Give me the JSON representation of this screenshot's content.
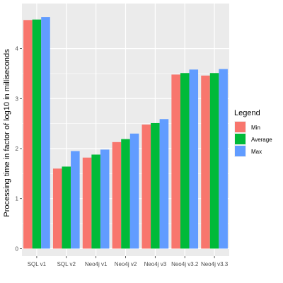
{
  "chart_data": {
    "type": "bar",
    "categories": [
      "SQL v1",
      "SQL v2",
      "Neo4j v1",
      "Neo4j v2",
      "Neo4j v3",
      "Neo4j v3.2",
      "Neo4j v3.3"
    ],
    "series": [
      {
        "name": "Min",
        "color": "#F8766D",
        "values": [
          4.57,
          1.6,
          1.82,
          2.13,
          2.48,
          3.48,
          3.46
        ]
      },
      {
        "name": "Average",
        "color": "#00BA38",
        "values": [
          4.58,
          1.64,
          1.88,
          2.19,
          2.51,
          3.51,
          3.51
        ]
      },
      {
        "name": "Max",
        "color": "#619CFF",
        "values": [
          4.63,
          1.95,
          1.98,
          2.3,
          2.59,
          3.58,
          3.59
        ]
      }
    ],
    "ylabel": "Processing time in factor of log10 in milliseconds",
    "xlabel": "",
    "ylim": [
      -0.15,
      4.9
    ],
    "yticks": [
      0,
      1,
      2,
      3,
      4
    ],
    "legend": {
      "title": "Legend",
      "placement": "right"
    },
    "grid": true,
    "panel_color": "#EBEBEB"
  }
}
